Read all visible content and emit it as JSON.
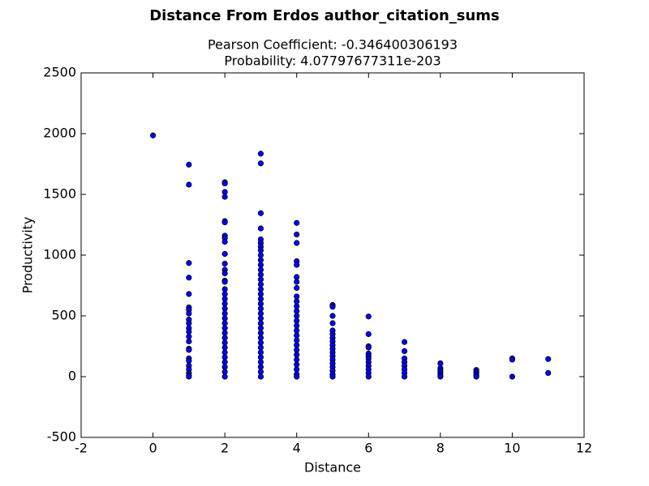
{
  "chart_data": {
    "type": "scatter",
    "title": "Distance From Erdos author_citation_sums",
    "subtitle": [
      "Pearson Coefficient: -0.346400306193",
      "Probability: 4.07797677311e-203"
    ],
    "xlabel": "Distance",
    "ylabel": "Productivity",
    "xlim": [
      -2,
      12
    ],
    "ylim": [
      -500,
      2500
    ],
    "xticks": [
      -2,
      0,
      2,
      4,
      6,
      8,
      10,
      12
    ],
    "yticks": [
      -500,
      0,
      500,
      1000,
      1500,
      2000,
      2500
    ],
    "grid": false,
    "series": [
      {
        "color": "#0000ff",
        "x": [
          0,
          1,
          1,
          1,
          1,
          1,
          1,
          1,
          1,
          1,
          1,
          1,
          1,
          1,
          1,
          1,
          1,
          1,
          1,
          1,
          1,
          1,
          1,
          1,
          2,
          2,
          2,
          2,
          2,
          2,
          2,
          2,
          2,
          2,
          2,
          2,
          2,
          2,
          2,
          2,
          2,
          2,
          2,
          2,
          2,
          2,
          2,
          2,
          2,
          2,
          2,
          2,
          2,
          2,
          2,
          2,
          2,
          2,
          3,
          3,
          3,
          3,
          3,
          3,
          3,
          3,
          3,
          3,
          3,
          3,
          3,
          3,
          3,
          3,
          3,
          3,
          3,
          3,
          3,
          3,
          3,
          3,
          3,
          3,
          3,
          3,
          3,
          3,
          3,
          3,
          3,
          3,
          4,
          4,
          4,
          4,
          4,
          4,
          4,
          4,
          4,
          4,
          4,
          4,
          4,
          4,
          4,
          4,
          4,
          4,
          4,
          4,
          4,
          4,
          4,
          4,
          4,
          4,
          5,
          5,
          5,
          5,
          5,
          5,
          5,
          5,
          5,
          5,
          5,
          5,
          5,
          5,
          5,
          5,
          5,
          5,
          6,
          6,
          6,
          6,
          6,
          6,
          6,
          6,
          6,
          6,
          6,
          6,
          7,
          7,
          7,
          7,
          7,
          7,
          7,
          7,
          8,
          8,
          8,
          8,
          8,
          8,
          9,
          9,
          9,
          9,
          9,
          10,
          10,
          10,
          11,
          11
        ],
        "values": [
          1985,
          1745,
          1580,
          935,
          815,
          680,
          570,
          550,
          520,
          470,
          440,
          400,
          370,
          330,
          290,
          230,
          220,
          150,
          130,
          90,
          60,
          30,
          10,
          0,
          1600,
          1590,
          1520,
          1480,
          1280,
          1270,
          1160,
          1140,
          1110,
          1010,
          930,
          880,
          850,
          790,
          780,
          720,
          680,
          640,
          600,
          560,
          520,
          480,
          440,
          400,
          360,
          320,
          280,
          240,
          200,
          160,
          120,
          80,
          40,
          0,
          1835,
          1755,
          1345,
          1220,
          1130,
          1100,
          1070,
          1040,
          1000,
          960,
          920,
          880,
          840,
          800,
          760,
          720,
          680,
          640,
          600,
          560,
          520,
          480,
          440,
          400,
          360,
          320,
          280,
          240,
          200,
          160,
          120,
          80,
          40,
          0,
          1265,
          1170,
          1100,
          950,
          920,
          820,
          780,
          730,
          660,
          620,
          580,
          540,
          500,
          460,
          420,
          380,
          340,
          300,
          260,
          220,
          180,
          140,
          100,
          60,
          20,
          0,
          590,
          575,
          500,
          440,
          380,
          350,
          320,
          290,
          260,
          230,
          200,
          170,
          140,
          110,
          80,
          50,
          20,
          0,
          495,
          350,
          250,
          240,
          190,
          170,
          150,
          120,
          90,
          60,
          30,
          0,
          285,
          210,
          150,
          120,
          90,
          60,
          30,
          0,
          110,
          70,
          50,
          30,
          10,
          0,
          55,
          40,
          25,
          10,
          0,
          150,
          140,
          0,
          145,
          30
        ]
      }
    ]
  }
}
